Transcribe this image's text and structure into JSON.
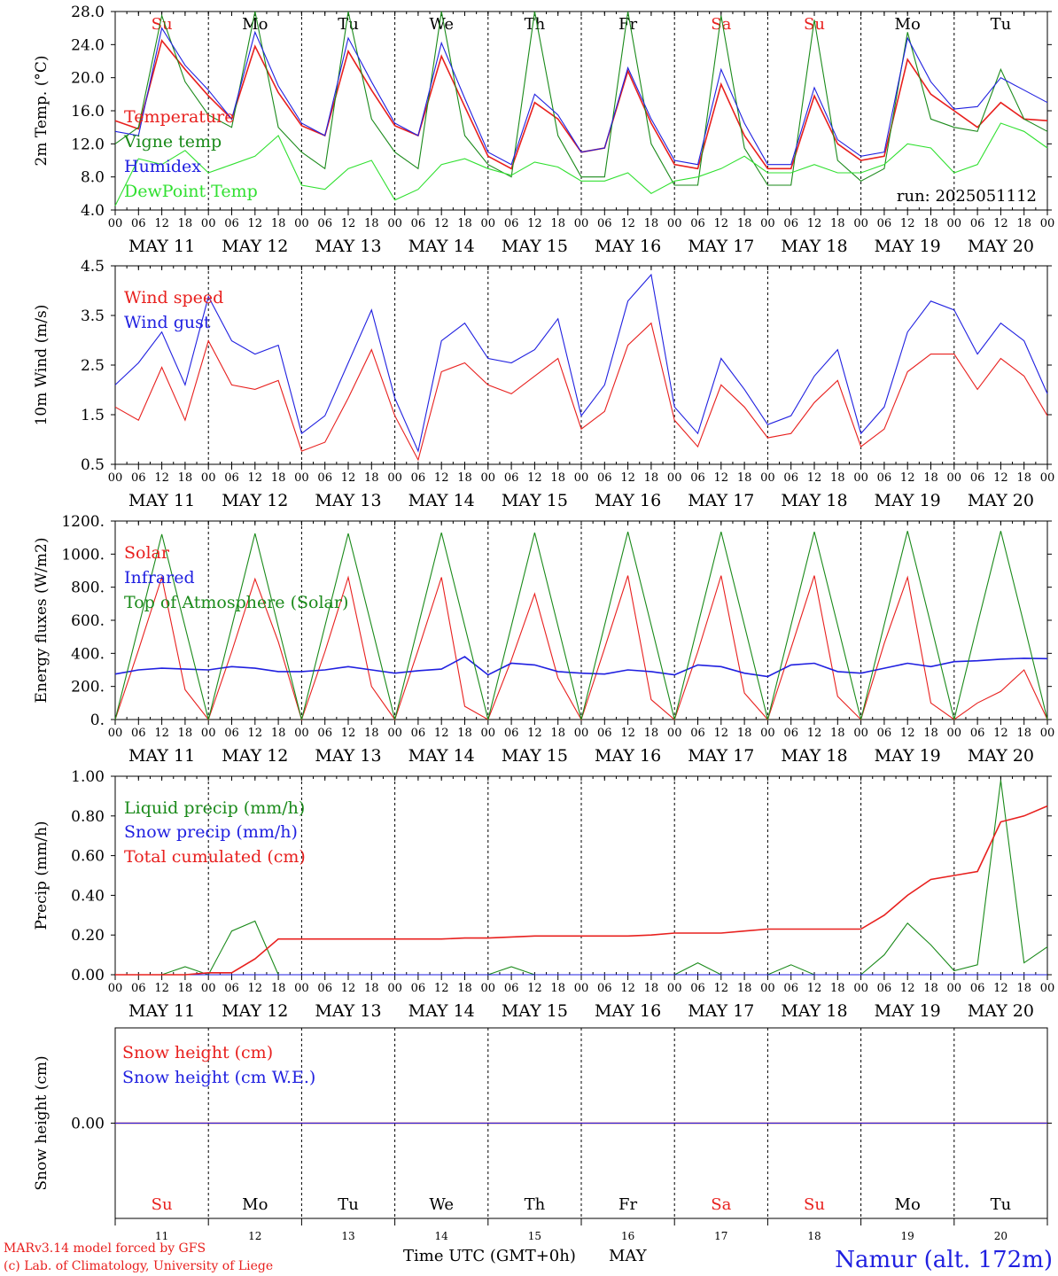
{
  "days": [
    "Su",
    "Mo",
    "Tu",
    "We",
    "Th",
    "Fr",
    "Sa",
    "Su",
    "Mo",
    "Tu"
  ],
  "day_colors": [
    "#e8201e",
    "#000000",
    "#000000",
    "#000000",
    "#000000",
    "#000000",
    "#e8201e",
    "#e8201e",
    "#000000",
    "#000000"
  ],
  "date_labels": [
    "MAY 11",
    "MAY 12",
    "MAY 13",
    "MAY 14",
    "MAY 15",
    "MAY 16",
    "MAY 17",
    "MAY 18",
    "MAY 19",
    "MAY 20"
  ],
  "hour_labels": [
    "00",
    "06",
    "12",
    "18"
  ],
  "bottom_day_numbers": [
    "11",
    "12",
    "13",
    "14",
    "15",
    "16",
    "17",
    "18",
    "19",
    "20"
  ],
  "x_axis_title": "Time UTC (GMT+0h)",
  "x_axis_month": "MAY",
  "footer": {
    "model": "MARv3.14 model forced by GFS",
    "credit": "(c) Lab. of Climatology, University of Liege",
    "station": "Namur (alt. 172m)"
  },
  "colors": {
    "red": "#e8201e",
    "green": "#1a8a1a",
    "blue": "#2020e0",
    "lightgreen": "#30e030"
  },
  "chart_data": [
    {
      "type": "line",
      "ylabel": "2m Temp. (°C)",
      "ylim": [
        4.0,
        28.0
      ],
      "yticks": [
        "4.0",
        "8.0",
        "12.0",
        "16.0",
        "20.0",
        "24.0",
        "28.0"
      ],
      "annotation": "run: 2025051112",
      "x_hours": [
        0,
        6,
        12,
        18,
        24,
        30,
        36,
        42,
        48,
        54,
        60,
        66,
        72,
        78,
        84,
        90,
        96,
        102,
        108,
        114,
        120,
        126,
        132,
        138,
        144,
        150,
        156,
        162,
        168,
        174,
        180,
        186,
        192,
        198,
        204,
        210,
        216,
        222,
        228,
        234,
        240
      ],
      "series": [
        {
          "name": "Temperature",
          "color": "red",
          "values": [
            14.8,
            13.8,
            24.5,
            21.0,
            17.8,
            15.0,
            23.8,
            18.2,
            14.2,
            13.0,
            23.2,
            18.5,
            14.2,
            13.0,
            22.6,
            16.5,
            10.5,
            9.0,
            17.0,
            15.0,
            11.0,
            11.5,
            20.8,
            14.5,
            9.5,
            9.0,
            19.2,
            13.0,
            9.0,
            9.0,
            17.8,
            12.0,
            10.0,
            10.5,
            22.2,
            18.0,
            16.0,
            14.0,
            17.0,
            15.0,
            14.8
          ]
        },
        {
          "name": "Vigne temp",
          "color": "green",
          "values": [
            12.0,
            14.0,
            27.5,
            19.5,
            15.5,
            14.0,
            28.0,
            14.0,
            11.0,
            9.0,
            28.0,
            15.0,
            11.0,
            9.0,
            28.0,
            13.0,
            9.5,
            8.0,
            28.0,
            13.0,
            8.0,
            8.0,
            28.0,
            12.0,
            7.0,
            7.0,
            27.5,
            11.5,
            7.0,
            7.0,
            27.0,
            10.0,
            7.5,
            9.0,
            25.5,
            15.0,
            14.0,
            13.5,
            21.0,
            15.0,
            13.5
          ]
        },
        {
          "name": "Humidex",
          "color": "blue",
          "values": [
            13.5,
            13.0,
            26.0,
            21.5,
            18.5,
            15.0,
            25.5,
            19.0,
            14.5,
            13.0,
            24.8,
            19.5,
            14.5,
            13.0,
            24.2,
            17.5,
            11.0,
            9.5,
            18.0,
            15.5,
            11.0,
            11.5,
            21.2,
            15.0,
            10.0,
            9.5,
            21.0,
            14.5,
            9.5,
            9.5,
            18.8,
            12.5,
            10.5,
            11.0,
            24.8,
            19.5,
            16.2,
            16.5,
            20.0,
            18.5,
            17.0
          ]
        },
        {
          "name": "DewPoint Temp",
          "color": "lightgreen",
          "values": [
            4.5,
            10.2,
            9.5,
            11.2,
            8.5,
            9.5,
            10.5,
            13.0,
            7.0,
            6.5,
            9.0,
            10.0,
            5.2,
            6.5,
            9.5,
            10.2,
            9.0,
            8.2,
            9.8,
            9.2,
            7.5,
            7.5,
            8.5,
            6.0,
            7.5,
            8.0,
            9.0,
            10.5,
            8.5,
            8.5,
            9.5,
            8.5,
            8.5,
            9.5,
            12.0,
            11.5,
            8.5,
            9.5,
            14.5,
            13.5,
            11.5
          ]
        }
      ]
    },
    {
      "type": "line",
      "ylabel": "10m Wind (m/s)",
      "ylim": [
        0.5,
        5.0
      ],
      "yticks": [
        "0.5",
        "1.5",
        "2.5",
        "3.5",
        "4.5"
      ],
      "x_hours": [
        0,
        6,
        12,
        18,
        24,
        30,
        36,
        42,
        48,
        54,
        60,
        66,
        72,
        78,
        84,
        90,
        96,
        102,
        108,
        114,
        120,
        126,
        132,
        138,
        144,
        150,
        156,
        162,
        168,
        174,
        180,
        186,
        192,
        198,
        204,
        210,
        216,
        222,
        228,
        234,
        240
      ],
      "series": [
        {
          "name": "Wind speed",
          "color": "red",
          "values": [
            1.8,
            1.5,
            2.7,
            1.5,
            3.3,
            2.3,
            2.2,
            2.4,
            0.8,
            1.0,
            2.0,
            3.1,
            1.6,
            0.6,
            2.6,
            2.8,
            2.3,
            2.1,
            2.5,
            2.9,
            1.3,
            1.7,
            3.2,
            3.7,
            1.5,
            0.9,
            2.3,
            1.8,
            1.1,
            1.2,
            1.9,
            2.4,
            0.9,
            1.3,
            2.6,
            3.0,
            3.0,
            2.2,
            2.9,
            2.5,
            1.6
          ]
        },
        {
          "name": "Wind gust",
          "color": "blue",
          "values": [
            2.3,
            2.8,
            3.5,
            2.3,
            4.3,
            3.3,
            3.0,
            3.2,
            1.2,
            1.6,
            2.8,
            4.0,
            2.0,
            0.8,
            3.3,
            3.7,
            2.9,
            2.8,
            3.1,
            3.8,
            1.6,
            2.3,
            4.2,
            4.8,
            1.8,
            1.2,
            2.9,
            2.2,
            1.4,
            1.6,
            2.5,
            3.1,
            1.2,
            1.8,
            3.5,
            4.2,
            4.0,
            3.0,
            3.7,
            3.3,
            2.1
          ]
        }
      ]
    },
    {
      "type": "line",
      "ylabel": "Energy fluxes (W/m2)",
      "ylim": [
        0,
        1200
      ],
      "yticks": [
        "0.",
        "200.",
        "400.",
        "600.",
        "800.",
        "1000.",
        "1200."
      ],
      "x_hours": [
        0,
        6,
        12,
        18,
        24,
        30,
        36,
        42,
        48,
        54,
        60,
        66,
        72,
        78,
        84,
        90,
        96,
        102,
        108,
        114,
        120,
        126,
        132,
        138,
        144,
        150,
        156,
        162,
        168,
        174,
        180,
        186,
        192,
        198,
        204,
        210,
        216,
        222,
        228,
        234,
        240
      ],
      "series": [
        {
          "name": "Solar",
          "color": "red",
          "values": [
            0,
            420,
            860,
            180,
            0,
            410,
            850,
            470,
            0,
            410,
            860,
            200,
            0,
            420,
            860,
            80,
            0,
            360,
            760,
            250,
            0,
            430,
            870,
            120,
            0,
            410,
            870,
            160,
            0,
            430,
            870,
            140,
            0,
            460,
            860,
            100,
            0,
            100,
            170,
            300,
            0
          ]
        },
        {
          "name": "Infrared",
          "color": "blue",
          "values": [
            275,
            300,
            310,
            305,
            300,
            320,
            310,
            290,
            290,
            300,
            320,
            300,
            280,
            295,
            305,
            380,
            270,
            340,
            330,
            290,
            280,
            275,
            300,
            290,
            270,
            330,
            320,
            280,
            260,
            330,
            340,
            290,
            280,
            310,
            340,
            320,
            350,
            355,
            365,
            370,
            368
          ]
        },
        {
          "name": "Top of Atmosphere (Solar)",
          "color": "green",
          "values": [
            0,
            560,
            1120,
            560,
            0,
            560,
            1125,
            560,
            0,
            565,
            1125,
            565,
            0,
            565,
            1130,
            565,
            0,
            565,
            1130,
            565,
            0,
            570,
            1135,
            570,
            0,
            570,
            1135,
            570,
            0,
            570,
            1135,
            570,
            0,
            575,
            1140,
            575,
            0,
            575,
            1140,
            575,
            0
          ]
        }
      ]
    },
    {
      "type": "line",
      "ylabel": "Precip (mm/h)",
      "ylim": [
        0.0,
        1.0
      ],
      "yticks": [
        "0.00",
        "0.20",
        "0.40",
        "0.60",
        "0.80",
        "1.00"
      ],
      "x_hours": [
        0,
        6,
        12,
        18,
        24,
        30,
        36,
        42,
        48,
        54,
        60,
        66,
        72,
        78,
        84,
        90,
        96,
        102,
        108,
        114,
        120,
        126,
        132,
        138,
        144,
        150,
        156,
        162,
        168,
        174,
        180,
        186,
        192,
        198,
        204,
        210,
        216,
        222,
        228,
        234,
        240
      ],
      "series": [
        {
          "name": "Liquid precip (mm/h)",
          "color": "green",
          "values": [
            0,
            0,
            0,
            0.04,
            0,
            0.22,
            0.27,
            0,
            0,
            0,
            0,
            0,
            0,
            0,
            0,
            0,
            0,
            0.04,
            0,
            0,
            0,
            0,
            0,
            0,
            0,
            0.06,
            0,
            0,
            0,
            0.05,
            0,
            0,
            0,
            0.1,
            0.26,
            0.15,
            0.02,
            0.05,
            0.98,
            0.06,
            0.14
          ]
        },
        {
          "name": "Snow precip (mm/h)",
          "color": "blue",
          "values": [
            0,
            0,
            0,
            0,
            0,
            0,
            0,
            0,
            0,
            0,
            0,
            0,
            0,
            0,
            0,
            0,
            0,
            0,
            0,
            0,
            0,
            0,
            0,
            0,
            0,
            0,
            0,
            0,
            0,
            0,
            0,
            0,
            0,
            0,
            0,
            0,
            0,
            0,
            0,
            0,
            0
          ]
        },
        {
          "name": "Total cumulated (cm)",
          "color": "red",
          "values": [
            0,
            0,
            0,
            0,
            0.01,
            0.01,
            0.08,
            0.18,
            0.18,
            0.18,
            0.18,
            0.18,
            0.18,
            0.18,
            0.18,
            0.185,
            0.185,
            0.19,
            0.195,
            0.195,
            0.195,
            0.195,
            0.195,
            0.2,
            0.21,
            0.21,
            0.21,
            0.22,
            0.23,
            0.23,
            0.23,
            0.23,
            0.23,
            0.3,
            0.4,
            0.48,
            0.5,
            0.52,
            0.77,
            0.8,
            0.85
          ]
        }
      ]
    },
    {
      "type": "line",
      "ylabel": "Snow height (cm)",
      "ylim": [
        -1.0,
        1.0
      ],
      "yticks": [
        "0.00"
      ],
      "x_hours": [
        0,
        240
      ],
      "series": [
        {
          "name": "Snow height (cm)",
          "color": "red",
          "values": [
            0,
            0
          ]
        },
        {
          "name": "Snow height (cm W.E.)",
          "color": "blue",
          "values": [
            0,
            0
          ]
        }
      ]
    }
  ]
}
